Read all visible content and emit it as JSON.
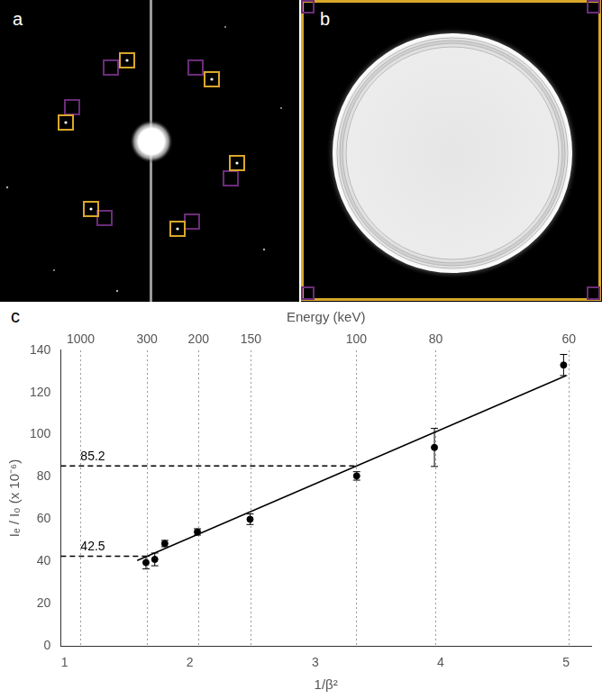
{
  "panel_labels": [
    "a",
    "b",
    "c"
  ],
  "chart_data": {
    "type": "scatter",
    "x_label": "1/β²",
    "x2_label": "Energy (keV)",
    "y_label": "Iₑ / I₀ (x 10⁻⁶)",
    "xlim": [
      0.97,
      5.2
    ],
    "xticks": [
      1,
      2,
      3,
      4,
      5
    ],
    "x2ticks": [
      {
        "value": 1.129,
        "label": "1000"
      },
      {
        "value": 1.658,
        "label": "300"
      },
      {
        "value": 2.069,
        "label": "200"
      },
      {
        "value": 2.486,
        "label": "150"
      },
      {
        "value": 3.327,
        "label": "100"
      },
      {
        "value": 3.961,
        "label": "80"
      },
      {
        "value": 5.022,
        "label": "60"
      }
    ],
    "ylim": [
      0,
      140
    ],
    "yticks": [
      0,
      20,
      40,
      60,
      80,
      100,
      120,
      140
    ],
    "x": [
      1.65,
      1.72,
      1.8,
      2.06,
      2.48,
      3.33,
      3.95,
      4.98
    ],
    "values": [
      39.5,
      41,
      48.5,
      54,
      60,
      80.5,
      94,
      133
    ],
    "errors": [
      3,
      3,
      1.5,
      1.5,
      2.5,
      2,
      9,
      5
    ],
    "color": "#000000",
    "marker": "circle",
    "fit_line": {
      "x": [
        1.58,
        5.0
      ],
      "values": [
        40.5,
        128.0
      ],
      "color": "#000000"
    },
    "reference_lines": [
      {
        "value": 42.5,
        "x_end": 1.658,
        "label": "42.5"
      },
      {
        "value": 85.2,
        "x_end": 3.327,
        "label": "85.2"
      }
    ],
    "grid": true
  }
}
